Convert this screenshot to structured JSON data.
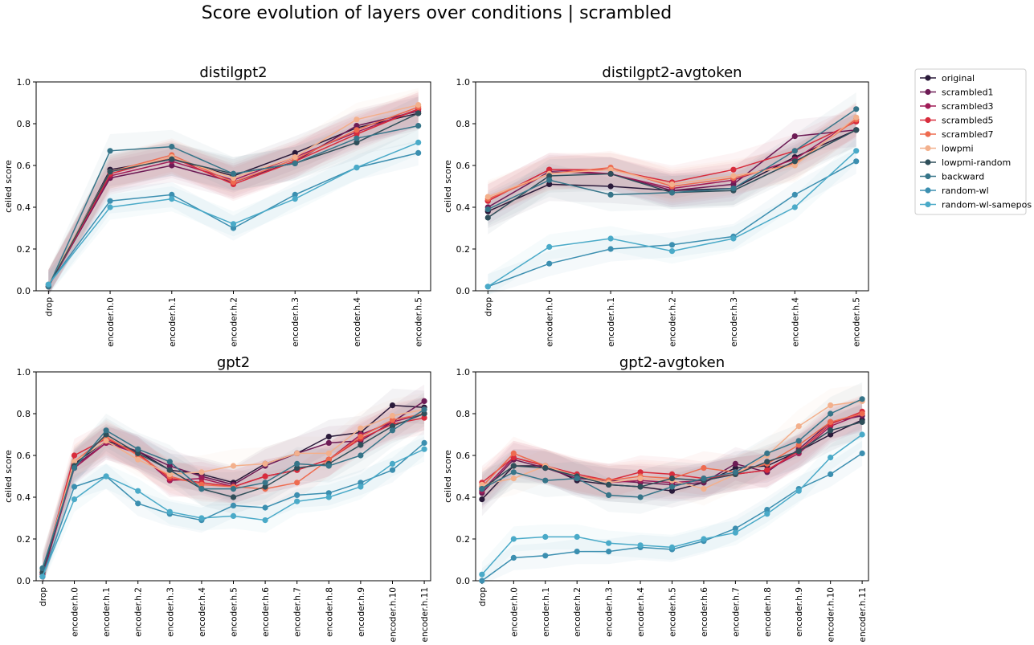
{
  "figure": {
    "title": "Score evolution of layers over conditions | scrambled"
  },
  "legend": {
    "placement": "outside-right",
    "entries": [
      {
        "name": "original",
        "color": "#2a1a3a"
      },
      {
        "name": "scrambled1",
        "color": "#6d1b55"
      },
      {
        "name": "scrambled3",
        "color": "#a01c57"
      },
      {
        "name": "scrambled5",
        "color": "#d82c3c"
      },
      {
        "name": "scrambled7",
        "color": "#ee6b4f"
      },
      {
        "name": "lowpmi",
        "color": "#f3b08c"
      },
      {
        "name": "lowpmi-random",
        "color": "#2f4f5a"
      },
      {
        "name": "backward",
        "color": "#367589"
      },
      {
        "name": "random-wl",
        "color": "#3c8fb0"
      },
      {
        "name": "random-wl-samepos",
        "color": "#4aaac8"
      }
    ]
  },
  "chart_data": [
    {
      "type": "line",
      "title": "distilgpt2",
      "xlabel": "",
      "ylabel": "ceiled score",
      "ylim": [
        0,
        1.0
      ],
      "yticks": [
        "0.0",
        "0.2",
        "0.4",
        "0.6",
        "0.8",
        "1.0"
      ],
      "categories": [
        "drop",
        "encoder.h.0",
        "encoder.h.1",
        "encoder.h.2",
        "encoder.h.3",
        "encoder.h.4",
        "encoder.h.5"
      ],
      "series": [
        {
          "name": "original",
          "values": [
            0.02,
            0.58,
            0.63,
            0.55,
            0.66,
            0.78,
            0.85
          ]
        },
        {
          "name": "scrambled1",
          "values": [
            0.02,
            0.54,
            0.6,
            0.52,
            0.62,
            0.79,
            0.86
          ]
        },
        {
          "name": "scrambled3",
          "values": [
            0.02,
            0.55,
            0.62,
            0.53,
            0.64,
            0.76,
            0.87
          ]
        },
        {
          "name": "scrambled5",
          "values": [
            0.02,
            0.56,
            0.64,
            0.51,
            0.62,
            0.75,
            0.87
          ]
        },
        {
          "name": "scrambled7",
          "values": [
            0.02,
            0.57,
            0.65,
            0.52,
            0.63,
            0.77,
            0.88
          ]
        },
        {
          "name": "lowpmi",
          "values": [
            0.03,
            0.57,
            0.64,
            0.54,
            0.64,
            0.82,
            0.89
          ]
        },
        {
          "name": "lowpmi-random",
          "values": [
            0.02,
            0.57,
            0.63,
            0.56,
            0.61,
            0.71,
            0.85
          ]
        },
        {
          "name": "backward",
          "values": [
            0.02,
            0.67,
            0.69,
            0.56,
            0.61,
            0.73,
            0.79
          ]
        },
        {
          "name": "random-wl",
          "values": [
            0.03,
            0.43,
            0.46,
            0.3,
            0.46,
            0.59,
            0.66
          ]
        },
        {
          "name": "random-wl-samepos",
          "values": [
            0.03,
            0.4,
            0.44,
            0.32,
            0.44,
            0.59,
            0.71
          ]
        }
      ]
    },
    {
      "type": "line",
      "title": "distilgpt2-avgtoken",
      "xlabel": "",
      "ylabel": "ceiled score",
      "ylim": [
        0,
        1.0
      ],
      "yticks": [
        "0.0",
        "0.2",
        "0.4",
        "0.6",
        "0.8",
        "1.0"
      ],
      "categories": [
        "drop",
        "encoder.h.0",
        "encoder.h.1",
        "encoder.h.2",
        "encoder.h.3",
        "encoder.h.4",
        "encoder.h.5"
      ],
      "series": [
        {
          "name": "original",
          "values": [
            0.38,
            0.51,
            0.5,
            0.48,
            0.49,
            0.64,
            0.77
          ]
        },
        {
          "name": "scrambled1",
          "values": [
            0.4,
            0.57,
            0.56,
            0.48,
            0.51,
            0.74,
            0.77
          ]
        },
        {
          "name": "scrambled3",
          "values": [
            0.43,
            0.58,
            0.56,
            0.49,
            0.53,
            0.63,
            0.82
          ]
        },
        {
          "name": "scrambled5",
          "values": [
            0.43,
            0.58,
            0.58,
            0.52,
            0.58,
            0.67,
            0.81
          ]
        },
        {
          "name": "scrambled7",
          "values": [
            0.44,
            0.56,
            0.59,
            0.5,
            0.54,
            0.61,
            0.82
          ]
        },
        {
          "name": "lowpmi",
          "values": [
            0.45,
            0.56,
            0.58,
            0.51,
            0.55,
            0.6,
            0.83
          ]
        },
        {
          "name": "lowpmi-random",
          "values": [
            0.35,
            0.55,
            0.56,
            0.47,
            0.48,
            0.62,
            0.77
          ]
        },
        {
          "name": "backward",
          "values": [
            0.39,
            0.53,
            0.46,
            0.47,
            0.49,
            0.67,
            0.87
          ]
        },
        {
          "name": "random-wl",
          "values": [
            0.02,
            0.13,
            0.2,
            0.22,
            0.26,
            0.46,
            0.62
          ]
        },
        {
          "name": "random-wl-samepos",
          "values": [
            0.02,
            0.21,
            0.25,
            0.19,
            0.25,
            0.4,
            0.67
          ]
        }
      ]
    },
    {
      "type": "line",
      "title": "gpt2",
      "xlabel": "",
      "ylabel": "ceiled score",
      "ylim": [
        0,
        1.0
      ],
      "yticks": [
        "0.0",
        "0.2",
        "0.4",
        "0.6",
        "0.8",
        "1.0"
      ],
      "categories": [
        "drop",
        "encoder.h.0",
        "encoder.h.1",
        "encoder.h.2",
        "encoder.h.3",
        "encoder.h.4",
        "encoder.h.5",
        "encoder.h.6",
        "encoder.h.7",
        "encoder.h.8",
        "encoder.h.9",
        "encoder.h.10",
        "encoder.h.11"
      ],
      "series": [
        {
          "name": "original",
          "values": [
            0.02,
            0.56,
            0.67,
            0.62,
            0.53,
            0.51,
            0.47,
            0.56,
            0.61,
            0.69,
            0.71,
            0.84,
            0.83
          ]
        },
        {
          "name": "scrambled1",
          "values": [
            0.02,
            0.55,
            0.66,
            0.62,
            0.55,
            0.5,
            0.46,
            0.55,
            0.61,
            0.66,
            0.67,
            0.76,
            0.86
          ]
        },
        {
          "name": "scrambled3",
          "values": [
            0.03,
            0.54,
            0.66,
            0.61,
            0.48,
            0.49,
            0.45,
            0.5,
            0.53,
            0.58,
            0.7,
            0.76,
            0.8
          ]
        },
        {
          "name": "scrambled5",
          "values": [
            0.04,
            0.6,
            0.68,
            0.61,
            0.49,
            0.47,
            0.45,
            0.5,
            0.53,
            0.58,
            0.68,
            0.75,
            0.78
          ]
        },
        {
          "name": "scrambled7",
          "values": [
            0.05,
            0.57,
            0.69,
            0.6,
            0.5,
            0.46,
            0.45,
            0.44,
            0.47,
            0.58,
            0.69,
            0.77,
            0.8
          ]
        },
        {
          "name": "lowpmi",
          "values": [
            0.05,
            0.57,
            0.67,
            0.58,
            0.51,
            0.52,
            0.55,
            0.56,
            0.61,
            0.61,
            0.73,
            0.79,
            0.82
          ]
        },
        {
          "name": "lowpmi-random",
          "values": [
            0.04,
            0.55,
            0.7,
            0.61,
            0.53,
            0.44,
            0.4,
            0.45,
            0.54,
            0.56,
            0.65,
            0.74,
            0.8
          ]
        },
        {
          "name": "backward",
          "values": [
            0.06,
            0.54,
            0.72,
            0.63,
            0.57,
            0.44,
            0.44,
            0.47,
            0.56,
            0.55,
            0.6,
            0.72,
            0.82
          ]
        },
        {
          "name": "random-wl",
          "values": [
            0.02,
            0.45,
            0.5,
            0.37,
            0.32,
            0.29,
            0.36,
            0.35,
            0.41,
            0.42,
            0.47,
            0.53,
            0.66
          ]
        },
        {
          "name": "random-wl-samepos",
          "values": [
            0.02,
            0.39,
            0.5,
            0.43,
            0.33,
            0.3,
            0.31,
            0.29,
            0.38,
            0.4,
            0.45,
            0.56,
            0.63
          ]
        }
      ]
    },
    {
      "type": "line",
      "title": "gpt2-avgtoken",
      "xlabel": "",
      "ylabel": "ceiled score",
      "ylim": [
        0,
        1.0
      ],
      "yticks": [
        "0.0",
        "0.2",
        "0.4",
        "0.6",
        "0.8",
        "1.0"
      ],
      "categories": [
        "drop",
        "encoder.h.0",
        "encoder.h.1",
        "encoder.h.2",
        "encoder.h.3",
        "encoder.h.4",
        "encoder.h.5",
        "encoder.h.6",
        "encoder.h.7",
        "encoder.h.8",
        "encoder.h.9",
        "encoder.h.10",
        "encoder.h.11"
      ],
      "series": [
        {
          "name": "original",
          "values": [
            0.39,
            0.55,
            0.55,
            0.48,
            0.46,
            0.45,
            0.43,
            0.47,
            0.54,
            0.55,
            0.62,
            0.7,
            0.77
          ]
        },
        {
          "name": "scrambled1",
          "values": [
            0.42,
            0.58,
            0.54,
            0.49,
            0.48,
            0.47,
            0.46,
            0.47,
            0.56,
            0.52,
            0.63,
            0.76,
            0.79
          ]
        },
        {
          "name": "scrambled3",
          "values": [
            0.43,
            0.59,
            0.55,
            0.5,
            0.47,
            0.48,
            0.47,
            0.48,
            0.51,
            0.53,
            0.61,
            0.74,
            0.8
          ]
        },
        {
          "name": "scrambled5",
          "values": [
            0.47,
            0.59,
            0.55,
            0.51,
            0.48,
            0.52,
            0.51,
            0.49,
            0.51,
            0.53,
            0.62,
            0.75,
            0.81
          ]
        },
        {
          "name": "scrambled7",
          "values": [
            0.45,
            0.61,
            0.55,
            0.5,
            0.48,
            0.5,
            0.49,
            0.54,
            0.52,
            0.56,
            0.65,
            0.76,
            0.8
          ]
        },
        {
          "name": "lowpmi",
          "values": [
            0.46,
            0.49,
            0.55,
            0.5,
            0.47,
            0.49,
            0.48,
            0.44,
            0.51,
            0.6,
            0.74,
            0.84,
            0.86
          ]
        },
        {
          "name": "lowpmi-random",
          "values": [
            0.44,
            0.55,
            0.54,
            0.5,
            0.46,
            0.45,
            0.49,
            0.48,
            0.51,
            0.57,
            0.62,
            0.72,
            0.76
          ]
        },
        {
          "name": "backward",
          "values": [
            0.44,
            0.52,
            0.48,
            0.49,
            0.41,
            0.4,
            0.45,
            0.49,
            0.52,
            0.61,
            0.67,
            0.8,
            0.87
          ]
        },
        {
          "name": "random-wl",
          "values": [
            0.0,
            0.11,
            0.12,
            0.14,
            0.14,
            0.16,
            0.15,
            0.19,
            0.25,
            0.34,
            0.44,
            0.51,
            0.61
          ]
        },
        {
          "name": "random-wl-samepos",
          "values": [
            0.03,
            0.2,
            0.21,
            0.21,
            0.18,
            0.17,
            0.16,
            0.2,
            0.23,
            0.32,
            0.43,
            0.59,
            0.7
          ]
        }
      ]
    }
  ]
}
